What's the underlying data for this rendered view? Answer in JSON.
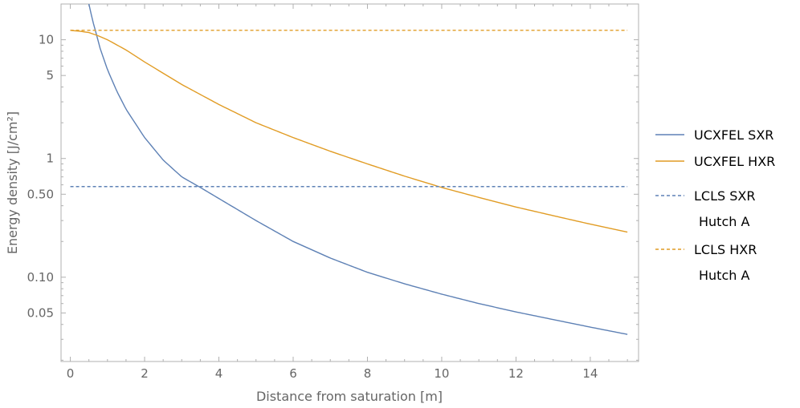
{
  "chart_data": {
    "type": "line",
    "title": "",
    "xlabel": "Distance from saturation [m]",
    "ylabel": "Energy density [J/cm²]",
    "x_scale": "linear",
    "y_scale": "log",
    "xlim": [
      -0.25,
      15.3
    ],
    "ylim": [
      0.0195,
      20
    ],
    "x_ticks": [
      0,
      2,
      4,
      6,
      8,
      10,
      12,
      14
    ],
    "x_tick_labels": [
      "0",
      "2",
      "4",
      "6",
      "8",
      "10",
      "12",
      "14"
    ],
    "y_ticks": [
      0.05,
      0.1,
      0.5,
      1,
      5,
      10
    ],
    "y_tick_labels": [
      "0.05",
      "0.10",
      "0.50",
      "1",
      "5",
      "10"
    ],
    "grid": false,
    "legend_position": "right",
    "series": [
      {
        "name": "UCXFEL SXR",
        "style": "solid",
        "color": "#5e81b5",
        "x": [
          0.5,
          0.6,
          0.7,
          0.8,
          1.0,
          1.25,
          1.5,
          2.0,
          2.5,
          3.0,
          3.5,
          4.0,
          5.0,
          6.0,
          7.0,
          8.0,
          9.0,
          10.0,
          11.0,
          12.0,
          13.0,
          14.0,
          15.0
        ],
        "y": [
          20.0,
          14.5,
          11.2,
          8.5,
          5.6,
          3.7,
          2.6,
          1.5,
          0.97,
          0.7,
          0.57,
          0.46,
          0.3,
          0.2,
          0.145,
          0.11,
          0.088,
          0.072,
          0.06,
          0.051,
          0.044,
          0.038,
          0.033
        ]
      },
      {
        "name": "UCXFEL HXR",
        "style": "solid",
        "color": "#e19c24",
        "x": [
          0,
          0.25,
          0.5,
          0.75,
          1.0,
          1.5,
          2.0,
          3.0,
          4.0,
          5.0,
          6.0,
          7.0,
          8.0,
          9.0,
          10.0,
          11.0,
          12.0,
          13.0,
          14.0,
          15.0
        ],
        "y": [
          12.0,
          11.8,
          11.5,
          10.8,
          10.0,
          8.2,
          6.5,
          4.2,
          2.85,
          2.0,
          1.5,
          1.15,
          0.9,
          0.71,
          0.57,
          0.47,
          0.39,
          0.33,
          0.28,
          0.24
        ]
      },
      {
        "name": "LCLS SXR\nHutch A",
        "legend_lines": [
          "LCLS SXR",
          "Hutch A"
        ],
        "style": "dashed",
        "color": "#5e81b5",
        "x": [
          0,
          15
        ],
        "y": [
          0.58,
          0.58
        ]
      },
      {
        "name": "LCLS HXR\nHutch A",
        "legend_lines": [
          "LCLS HXR",
          "Hutch A"
        ],
        "style": "dashed",
        "color": "#e19c24",
        "x": [
          0,
          15
        ],
        "y": [
          12.0,
          12.0
        ]
      }
    ]
  }
}
